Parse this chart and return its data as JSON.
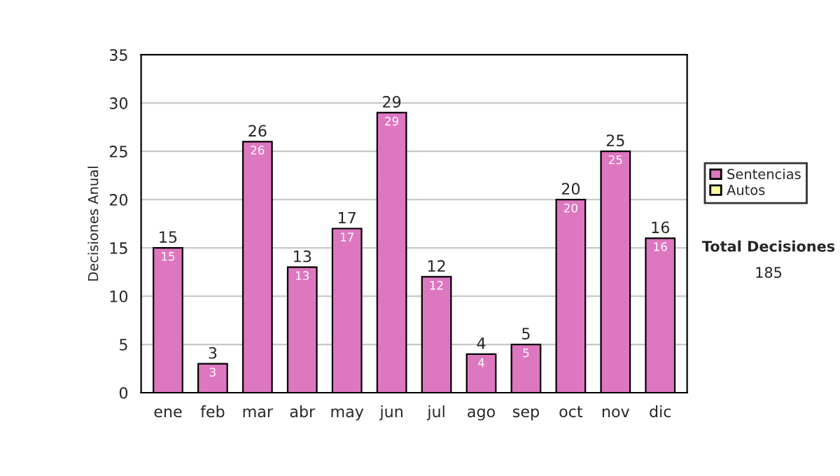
{
  "chart_data": {
    "type": "bar",
    "ylabel": "Decisiones Anual",
    "stacked": true,
    "categories": [
      "ene",
      "feb",
      "mar",
      "abr",
      "may",
      "jun",
      "jul",
      "ago",
      "sep",
      "oct",
      "nov",
      "dic"
    ],
    "series": [
      {
        "name": "Sentencias",
        "color": "#dd77c0",
        "values": [
          15,
          3,
          26,
          13,
          17,
          29,
          12,
          4,
          5,
          20,
          25,
          16
        ],
        "value_labels": [
          "15",
          "3",
          "26",
          "13",
          "17",
          "29",
          "12",
          "4",
          "5",
          "20",
          "25",
          "16"
        ]
      },
      {
        "name": "Autos",
        "color": "#ffff99",
        "values": [
          0,
          0,
          0,
          0,
          0,
          0,
          0,
          0,
          0,
          0,
          0,
          0
        ]
      }
    ],
    "totals": [
      "15",
      "3",
      "26",
      "13",
      "17",
      "29",
      "12",
      "4",
      "5",
      "20",
      "25",
      "16"
    ],
    "ylim": [
      0,
      35
    ],
    "yticks": [
      0,
      5,
      10,
      15,
      20,
      25,
      30,
      35
    ],
    "grid": "y",
    "legend": "right",
    "annotations": [
      "Total Decisiones",
      "185"
    ]
  }
}
